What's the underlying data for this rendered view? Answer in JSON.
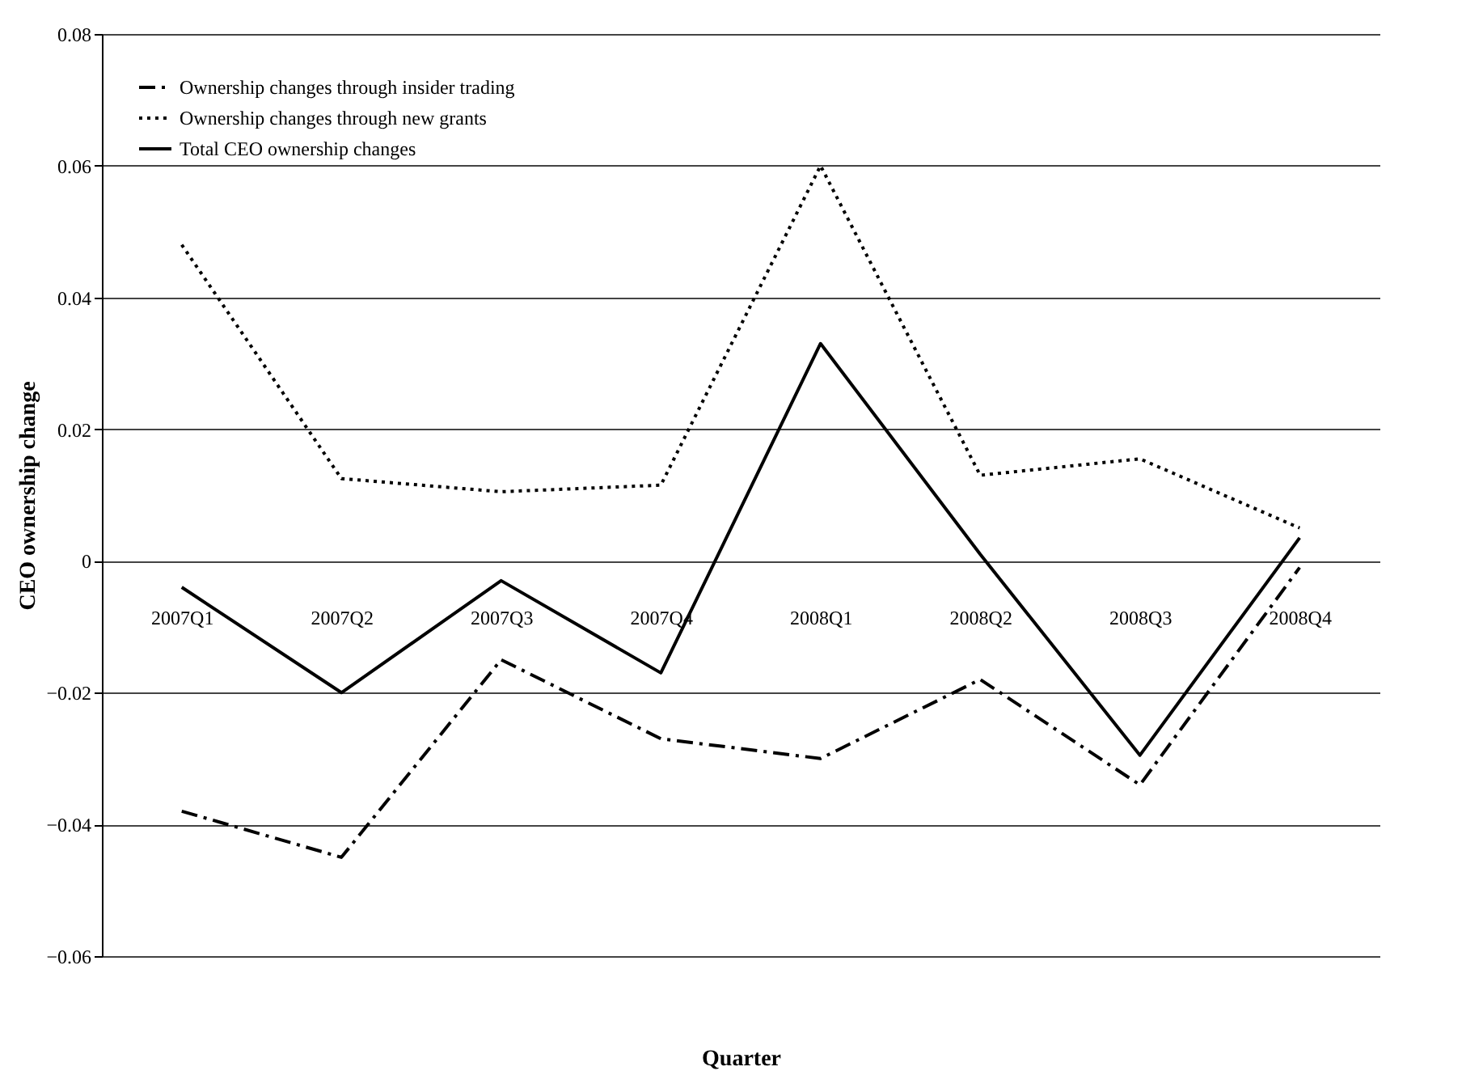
{
  "chart_data": {
    "type": "line",
    "xlabel": "Quarter",
    "ylabel": "CEO ownership change",
    "categories": [
      "2007Q1",
      "2007Q2",
      "2007Q3",
      "2007Q4",
      "2008Q1",
      "2008Q2",
      "2008Q3",
      "2008Q4"
    ],
    "series": [
      {
        "name": "Ownership changes through insider trading",
        "color": "#000000",
        "line_style": "dashed",
        "values": [
          -0.038,
          -0.045,
          -0.015,
          -0.027,
          -0.03,
          -0.018,
          -0.034,
          -0.001
        ]
      },
      {
        "name": "Ownership changes through new grants",
        "color": "#000000",
        "line_style": "dotted",
        "values": [
          0.048,
          0.0125,
          0.0105,
          0.0115,
          0.06,
          0.013,
          0.0155,
          0.005
        ]
      },
      {
        "name": "Total CEO ownership changes",
        "color": "#000000",
        "line_style": "solid",
        "values": [
          -0.004,
          -0.02,
          -0.003,
          -0.017,
          0.033,
          0.001,
          -0.0295,
          0.0035
        ]
      }
    ],
    "ylim": [
      -0.06,
      0.08
    ],
    "yticks": [
      -0.06,
      -0.04,
      -0.02,
      0,
      0.02,
      0.04,
      0.06,
      0.08
    ],
    "grid": "y",
    "legend": "top left",
    "marker": "none"
  }
}
